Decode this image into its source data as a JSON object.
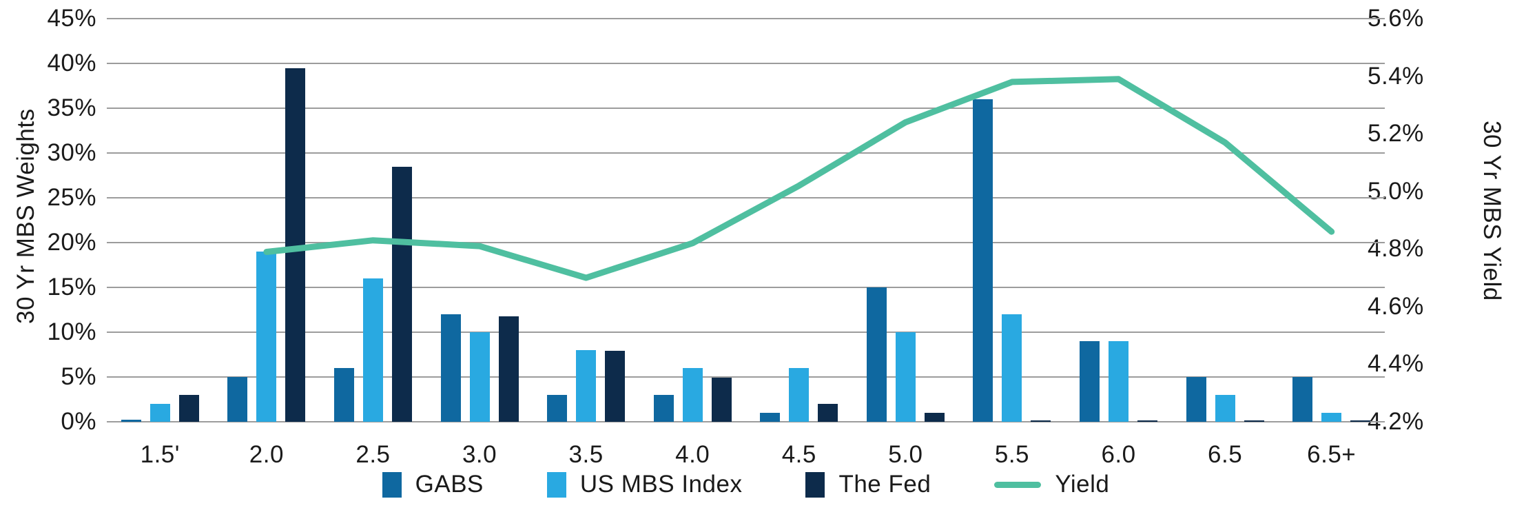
{
  "chart_data": {
    "type": "combo-bar-line",
    "categories": [
      "1.5'",
      "2.0",
      "2.5",
      "3.0",
      "3.5",
      "4.0",
      "4.5",
      "5.0",
      "5.5",
      "6.0",
      "6.5",
      "6.5+"
    ],
    "bar_series": [
      {
        "name": "GABS",
        "color": "#0f68a0",
        "values": [
          0.2,
          5,
          6,
          12,
          3,
          3,
          1,
          15,
          36,
          9,
          5,
          5
        ]
      },
      {
        "name": "US MBS Index",
        "color": "#29a9e1",
        "values": [
          2,
          19,
          16,
          10,
          8,
          6,
          6,
          10,
          12,
          9,
          3,
          1
        ]
      },
      {
        "name": "The Fed",
        "color": "#0d2b4b",
        "values": [
          3,
          39.5,
          28.5,
          11.8,
          7.9,
          4.9,
          2,
          1,
          0.1,
          0.1,
          0.1,
          0.1
        ]
      }
    ],
    "line_series": {
      "name": "Yield",
      "color": "#4fbfa0",
      "axis": "right",
      "values": [
        null,
        4.79,
        4.83,
        4.81,
        4.7,
        4.82,
        5.02,
        5.24,
        5.38,
        5.39,
        5.17,
        4.86
      ]
    },
    "left_axis": {
      "title": "30 Yr MBS Weights",
      "min": 0,
      "max": 45,
      "ticks": [
        "45%",
        "40%",
        "35%",
        "30%",
        "25%",
        "20%",
        "15%",
        "10%",
        "5%",
        "0%"
      ]
    },
    "right_axis": {
      "title": "30 Yr MBS Yield",
      "min": 4.2,
      "max": 5.6,
      "ticks": [
        "5.6%",
        "5.4%",
        "5.2%",
        "5.0%",
        "4.8%",
        "4.6%",
        "4.4%",
        "4.2%"
      ]
    },
    "grid": true,
    "grid_color": "#9c9c9c",
    "background_color": "#ffffff",
    "text_color": "#1a1a1a",
    "legend_position": "bottom"
  },
  "legend": {
    "items": [
      {
        "label": "GABS",
        "type": "square",
        "color": "#0f68a0"
      },
      {
        "label": "US MBS Index",
        "type": "square",
        "color": "#29a9e1"
      },
      {
        "label": "The Fed",
        "type": "square",
        "color": "#0d2b4b"
      },
      {
        "label": "Yield",
        "type": "line",
        "color": "#4fbfa0"
      }
    ]
  }
}
